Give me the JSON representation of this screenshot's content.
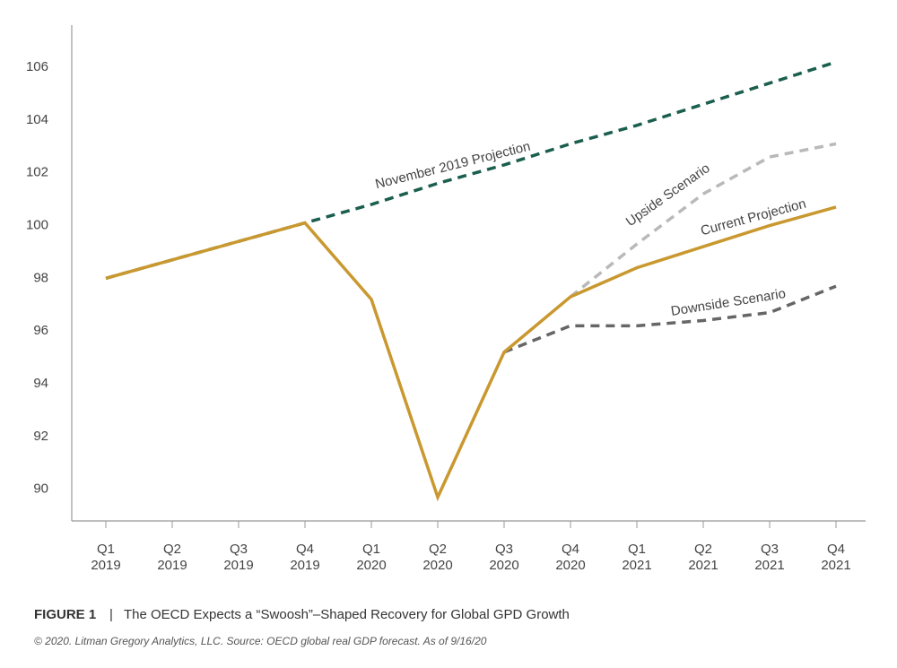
{
  "chart_data": {
    "type": "line",
    "categories": [
      "Q1 2019",
      "Q2 2019",
      "Q3 2019",
      "Q4 2019",
      "Q1 2020",
      "Q2 2020",
      "Q3 2020",
      "Q4 2020",
      "Q1 2021",
      "Q2 2021",
      "Q3 2021",
      "Q4 2021"
    ],
    "series": [
      {
        "name": "Upside Scenario",
        "color": "#b9b9b9",
        "dashed": true,
        "values": [
          null,
          null,
          null,
          null,
          null,
          null,
          null,
          97.3,
          99.3,
          101.2,
          102.6,
          103.1
        ]
      },
      {
        "name": "Downside Scenario",
        "color": "#666666",
        "dashed": true,
        "values": [
          null,
          null,
          null,
          null,
          null,
          null,
          95.2,
          96.2,
          96.2,
          96.4,
          96.7,
          97.7
        ]
      },
      {
        "name": "November 2019 Projection",
        "color": "#1a5e4e",
        "dashed": true,
        "values": [
          98.0,
          98.7,
          99.4,
          100.1,
          100.8,
          101.6,
          102.3,
          103.1,
          103.8,
          104.6,
          105.4,
          106.2
        ]
      },
      {
        "name": "Current Projection",
        "color": "#c9982f",
        "dashed": false,
        "values": [
          98.0,
          98.7,
          99.4,
          100.1,
          97.2,
          89.7,
          95.2,
          97.3,
          98.4,
          99.2,
          100.0,
          100.7
        ]
      }
    ],
    "ylim": [
      88.8,
      107.6
    ],
    "yticks": [
      90,
      92,
      94,
      96,
      98,
      100,
      102,
      104,
      106
    ],
    "grid": false
  },
  "figure_label": "FIGURE 1",
  "separator": "|",
  "caption": "The OECD Expects a “Swoosh”–Shaped Recovery for Global GPD Growth",
  "source": "© 2020.  Litman Gregory Analytics, LLC.  Source: OECD global real GDP forecast.  As of 9/16/20"
}
